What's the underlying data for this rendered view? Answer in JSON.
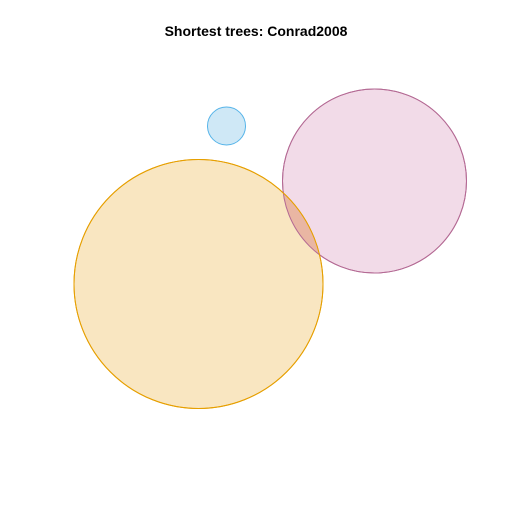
{
  "title": "Shortest trees: Conrad2008",
  "chart_data": {
    "type": "venn",
    "title": "Shortest trees: Conrad2008",
    "sets": [
      {
        "fill": "#cfe8f6",
        "stroke": "#56b4e9",
        "opacity": 1
      },
      {
        "fill": "#f0d5e4",
        "stroke": "#b46a94",
        "opacity": 0.85
      },
      {
        "fill": "#f8e0b2",
        "stroke": "#e69f00",
        "opacity": 0.8
      }
    ],
    "overlap_color": "#e9b6a3"
  }
}
